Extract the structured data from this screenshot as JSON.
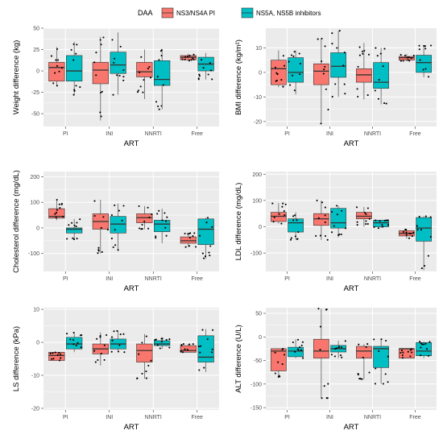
{
  "legend": {
    "title": "DAA",
    "entries": [
      {
        "label": "NS3/NS4A PI",
        "color": "#F8766D"
      },
      {
        "label": "NS5A, NS5B inhibitors",
        "color": "#00BFC4"
      }
    ]
  },
  "chart_data": [
    {
      "type": "box",
      "ylabel": "Weight difference (kg)",
      "xlabel": "ART",
      "categories": [
        "PI",
        "INI",
        "NNRTI",
        "Free"
      ],
      "ylim": [
        -65,
        50
      ],
      "yticks": [
        -50,
        -25,
        0,
        25,
        50
      ],
      "ytick_labels": [
        "-50",
        "-25",
        "0",
        "25",
        "50"
      ],
      "series": [
        {
          "name": "NS3/NS4A PI",
          "boxes": [
            {
              "min": -18,
              "q1": -12,
              "median": 4,
              "q3": 10,
              "max": 28
            },
            {
              "min": -58,
              "q1": -15,
              "median": 1,
              "q3": 10,
              "max": 40
            },
            {
              "min": -33,
              "q1": -7,
              "median": -1,
              "q3": 10,
              "max": 25
            },
            {
              "min": 12,
              "q1": 13,
              "median": 16,
              "q3": 18,
              "max": 20
            }
          ]
        },
        {
          "name": "NS5A, NS5B inhibitors",
          "boxes": [
            {
              "min": -28,
              "q1": -12,
              "median": 0,
              "q3": 18,
              "max": 34
            },
            {
              "min": -28,
              "q1": -3,
              "median": 7,
              "q3": 22,
              "max": 45
            },
            {
              "min": -45,
              "q1": -17,
              "median": -10,
              "q3": 12,
              "max": 25
            },
            {
              "min": -10,
              "q1": 0,
              "median": 8,
              "q3": 16,
              "max": 21
            }
          ]
        }
      ]
    },
    {
      "type": "box",
      "ylabel": "BMI difference (kg/m²)",
      "xlabel": "ART",
      "categories": [
        "PI",
        "INI",
        "NNRTI",
        "Free"
      ],
      "ylim": [
        -22,
        18
      ],
      "yticks": [
        -20,
        -10,
        0,
        10
      ],
      "ytick_labels": [
        "-20",
        "-10",
        "0",
        "10"
      ],
      "series": [
        {
          "name": "NS3/NS4A PI",
          "boxes": [
            {
              "min": -6,
              "q1": -5,
              "median": 1.5,
              "q3": 5,
              "max": 9
            },
            {
              "min": -21,
              "q1": -5,
              "median": 0.5,
              "q3": 3.5,
              "max": 14
            },
            {
              "min": -11,
              "q1": -4,
              "median": -1,
              "q3": 1.5,
              "max": 12
            },
            {
              "min": 4.5,
              "q1": 5,
              "median": 6,
              "q3": 6.5,
              "max": 7.5
            }
          ]
        },
        {
          "name": "NS5A, NS5B inhibitors",
          "boxes": [
            {
              "min": -9,
              "q1": -4,
              "median": 0,
              "q3": 6,
              "max": 9
            },
            {
              "min": -10,
              "q1": -2,
              "median": 2.5,
              "q3": 8,
              "max": 17
            },
            {
              "min": -13,
              "q1": -6.5,
              "median": -4,
              "q3": 4,
              "max": 10
            },
            {
              "min": -2,
              "q1": 0,
              "median": 4,
              "q3": 7,
              "max": 11
            }
          ]
        }
      ]
    },
    {
      "type": "box",
      "ylabel": "Cholesterol difference (mg/dL)",
      "xlabel": "ART",
      "categories": [
        "PI",
        "INI",
        "NNRTI",
        "Free"
      ],
      "ylim": [
        -170,
        220
      ],
      "yticks": [
        -100,
        0,
        100,
        200
      ],
      "ytick_labels": [
        "-100",
        "0",
        "100",
        "200"
      ],
      "series": [
        {
          "name": "NS3/NS4A PI",
          "boxes": [
            {
              "min": 30,
              "q1": 38,
              "median": 45,
              "q3": 75,
              "max": 110
            },
            {
              "min": -100,
              "q1": -5,
              "median": 25,
              "q3": 55,
              "max": 110
            },
            {
              "min": -5,
              "q1": 20,
              "median": 40,
              "q3": 55,
              "max": 85
            },
            {
              "min": -75,
              "q1": -60,
              "median": -50,
              "q3": -35,
              "max": -20
            }
          ]
        },
        {
          "name": "NS5A, NS5B inhibitors",
          "boxes": [
            {
              "min": -45,
              "q1": -20,
              "median": -5,
              "q3": 0,
              "max": 35
            },
            {
              "min": -90,
              "q1": -20,
              "median": 15,
              "q3": 45,
              "max": 95
            },
            {
              "min": -60,
              "q1": -15,
              "median": 15,
              "q3": 30,
              "max": 75
            },
            {
              "min": -120,
              "q1": -65,
              "median": -5,
              "q3": 35,
              "max": 40
            }
          ]
        }
      ]
    },
    {
      "type": "box",
      "ylabel": "LDL difference (mg/dL)",
      "xlabel": "ART",
      "categories": [
        "PI",
        "INI",
        "NNRTI",
        "Free"
      ],
      "ylim": [
        -170,
        210
      ],
      "yticks": [
        -100,
        0,
        100,
        200
      ],
      "ytick_labels": [
        "-100",
        "0",
        "100",
        "200"
      ],
      "series": [
        {
          "name": "NS3/NS4A PI",
          "boxes": [
            {
              "min": 12,
              "q1": 20,
              "median": 40,
              "q3": 55,
              "max": 90
            },
            {
              "min": -50,
              "q1": 5,
              "median": 30,
              "q3": 50,
              "max": 100
            },
            {
              "min": 0,
              "q1": 30,
              "median": 40,
              "q3": 55,
              "max": 75
            },
            {
              "min": -45,
              "q1": -35,
              "median": -25,
              "q3": -15,
              "max": -10
            }
          ]
        },
        {
          "name": "NS5A, NS5B inhibitors",
          "boxes": [
            {
              "min": -50,
              "q1": -20,
              "median": 15,
              "q3": 30,
              "max": 55
            },
            {
              "min": -40,
              "q1": -5,
              "median": 15,
              "q3": 70,
              "max": 80
            },
            {
              "min": -5,
              "q1": 0,
              "median": 15,
              "q3": 25,
              "max": 25
            },
            {
              "min": -165,
              "q1": -55,
              "median": -5,
              "q3": 35,
              "max": 40
            }
          ]
        }
      ]
    },
    {
      "type": "box",
      "ylabel": "LS difference (kPa)",
      "xlabel": "ART",
      "categories": [
        "PI",
        "INI",
        "NNRTI",
        "Free"
      ],
      "ylim": [
        -20.5,
        10.5
      ],
      "yticks": [
        -20,
        -10,
        0,
        10
      ],
      "ytick_labels": [
        "-20",
        "-10",
        "0",
        "10"
      ],
      "series": [
        {
          "name": "NS3/NS4A PI",
          "boxes": [
            {
              "min": -5.5,
              "q1": -5.5,
              "median": -4,
              "q3": -3,
              "max": -3
            },
            {
              "min": -7,
              "q1": -3.5,
              "median": -2,
              "q3": -0.5,
              "max": 3
            },
            {
              "min": -11,
              "q1": -6,
              "median": -2.5,
              "q3": -0.5,
              "max": 2.5
            },
            {
              "min": -3,
              "q1": -3,
              "median": -2.5,
              "q3": -1,
              "max": -0.5
            }
          ]
        },
        {
          "name": "NS5A, NS5B inhibitors",
          "boxes": [
            {
              "min": -3,
              "q1": -2,
              "median": -0.5,
              "q3": 1.5,
              "max": 3
            },
            {
              "min": -3,
              "q1": -2,
              "median": -0.5,
              "q3": 1,
              "max": 3.5
            },
            {
              "min": -2,
              "q1": -1,
              "median": -0.5,
              "q3": 0.5,
              "max": 1.5
            },
            {
              "min": -9,
              "q1": -6,
              "median": -4.5,
              "q3": 2,
              "max": 4
            }
          ]
        }
      ]
    },
    {
      "type": "box",
      "ylabel": "ALT difference (U/L)",
      "xlabel": "ART",
      "categories": [
        "PI",
        "INI",
        "NNRTI",
        "Free"
      ],
      "ylim": [
        -155,
        62
      ],
      "yticks": [
        -150,
        -100,
        -50,
        0,
        50
      ],
      "ytick_labels": [
        "-150",
        "-100",
        "-50",
        "0",
        "50"
      ],
      "series": [
        {
          "name": "NS3/NS4A PI",
          "boxes": [
            {
              "min": -85,
              "q1": -72,
              "median": -30,
              "q3": -25,
              "max": -25
            },
            {
              "min": -130,
              "q1": -45,
              "median": -30,
              "q3": -5,
              "max": 60
            },
            {
              "min": -90,
              "q1": -45,
              "median": -30,
              "q3": -20,
              "max": -15
            },
            {
              "min": -45,
              "q1": -45,
              "median": -25,
              "q3": -25,
              "max": -25
            }
          ]
        },
        {
          "name": "NS5A, NS5B inhibitors",
          "boxes": [
            {
              "min": -45,
              "q1": -42,
              "median": -30,
              "q3": -22,
              "max": -5
            },
            {
              "min": -45,
              "q1": -32,
              "median": -25,
              "q3": -18,
              "max": -8
            },
            {
              "min": -100,
              "q1": -65,
              "median": -25,
              "q3": -20,
              "max": -5
            },
            {
              "min": -45,
              "q1": -40,
              "median": -30,
              "q3": -12,
              "max": -10
            }
          ]
        }
      ]
    }
  ]
}
